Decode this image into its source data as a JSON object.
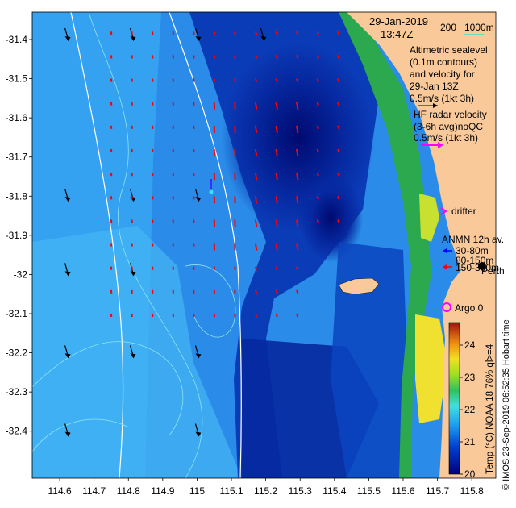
{
  "map": {
    "date": "29-Jan-2019",
    "time": "13:47Z",
    "isobath_labels": [
      "200",
      "1000m"
    ],
    "altimetry": {
      "lines": [
        "Altimetric sealevel",
        "(0.1m contours)",
        "and velocity for",
        "29-Jan 13Z",
        "0.5m/s (1kt 3h)"
      ]
    },
    "hf_radar": {
      "lines": [
        "HF radar velocity",
        "(3-6h avg)noQC",
        "0.5m/s (1kt 3h)"
      ]
    },
    "drifter_label": "drifter",
    "anmn": {
      "title": "ANMN 12h av.",
      "items": [
        "30-80m",
        "80-150m",
        "150-300m"
      ]
    },
    "place_label": "Perth",
    "argo_label": "Argo 0",
    "colorbar": {
      "title": "Temp (°C) NOAA 18 76% ql>=4",
      "ticks": [
        "24",
        "23",
        "22",
        "21",
        "20"
      ],
      "range": [
        20,
        24.7
      ]
    },
    "credit": "© IMOS 23-Sep-2019 06:52:35 Hobart time",
    "x_ticks": [
      "114.6",
      "114.7",
      "114.8",
      "114.9",
      "115",
      "115.1",
      "115.2",
      "115.3",
      "115.4",
      "115.5",
      "115.6",
      "115.7",
      "115.8"
    ],
    "y_ticks": [
      "-31.4",
      "-31.5",
      "-31.6",
      "-31.7",
      "-31.8",
      "-31.9",
      "-32",
      "-32.1",
      "-32.2",
      "-32.3",
      "-32.4"
    ],
    "lon_range": [
      114.52,
      115.87
    ],
    "lat_range": [
      -32.52,
      -31.33
    ],
    "colors": {
      "land": "#f9c99a",
      "cold": "#00107c",
      "mid": "#1a73e0",
      "warm": "#3fbcf0",
      "coast_green": "#2ca84e",
      "coast_yellow": "#f0e030",
      "radar_arrow": "#ff0000",
      "alt_arrow": "#000000",
      "drifter": "#ff00ff",
      "anmn_shallow": "#0000ff",
      "anmn_deep": "#ff0000"
    }
  }
}
